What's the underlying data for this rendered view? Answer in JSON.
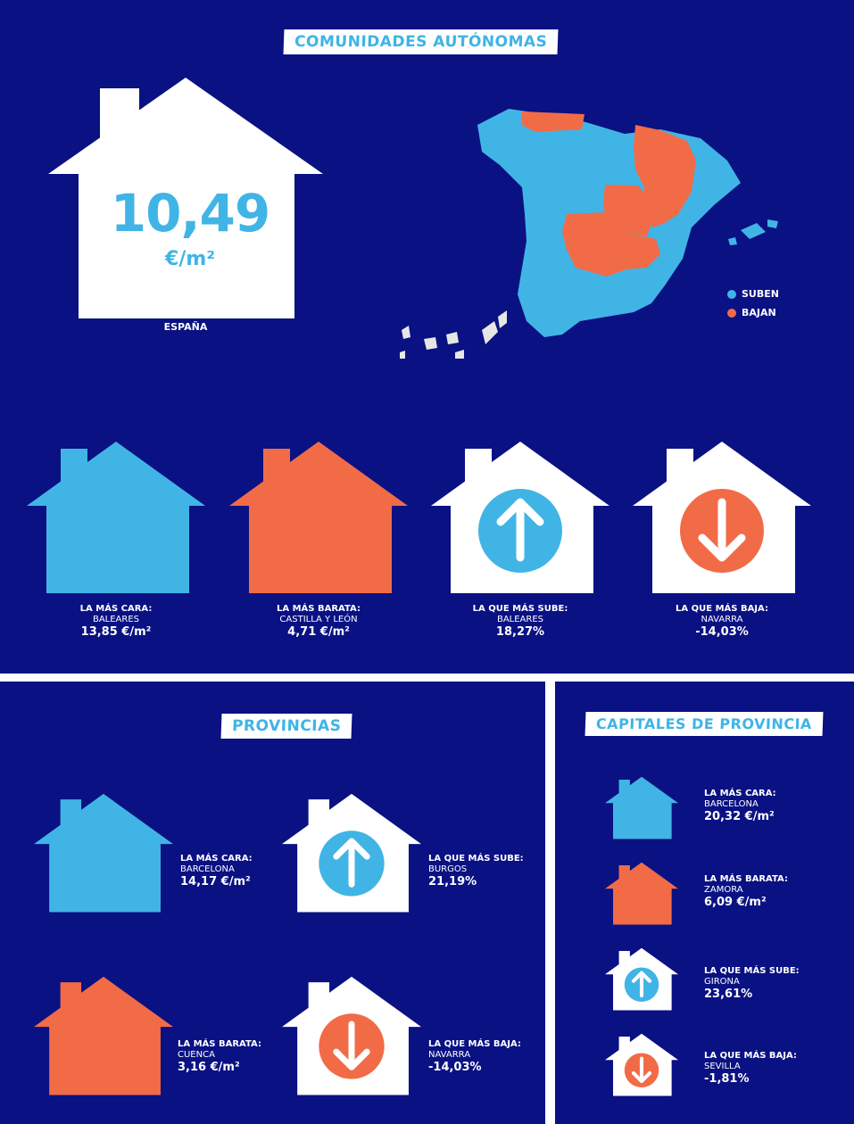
{
  "colors": {
    "navy": "#0a1183",
    "blue": "#41b4e6",
    "orange": "#f26b47",
    "white": "#ffffff"
  },
  "comunidades": {
    "title": "COMUNIDADES AUTÓNOMAS",
    "spain_value": "10,49",
    "spain_unit": "€/m²",
    "spain_label": "ESPAÑA",
    "legend": [
      {
        "label": "SUBEN",
        "color": "#41b4e6"
      },
      {
        "label": "BAJAN",
        "color": "#f26b47"
      }
    ],
    "cards": [
      {
        "title": "LA MÁS CARA:",
        "name": "BALEARES",
        "value": "13,85 €/m²",
        "icon": "house-blue-icon"
      },
      {
        "title": "LA MÁS BARATA:",
        "name": "CASTILLA Y LEÓN",
        "value": "4,71 €/m²",
        "icon": "house-orange-icon"
      },
      {
        "title": "LA QUE MÁS SUBE:",
        "name": "BALEARES",
        "value": "18,27%",
        "icon": "arrow-up-icon"
      },
      {
        "title": "LA QUE MÁS BAJA:",
        "name": "NAVARRA",
        "value": "-14,03%",
        "icon": "arrow-down-icon"
      }
    ]
  },
  "provincias": {
    "title": "PROVINCIAS",
    "cards": [
      {
        "title": "LA MÁS CARA:",
        "name": "BARCELONA",
        "value": "14,17 €/m²"
      },
      {
        "title": "LA QUE MÁS SUBE:",
        "name": "BURGOS",
        "value": "21,19%"
      },
      {
        "title": "LA MÁS BARATA:",
        "name": "CUENCA",
        "value": "3,16 €/m²"
      },
      {
        "title": "LA QUE MÁS BAJA:",
        "name": "NAVARRA",
        "value": "-14,03%"
      }
    ]
  },
  "capitales": {
    "title": "CAPITALES DE PROVINCIA",
    "cards": [
      {
        "title": "LA MÁS CARA:",
        "name": "BARCELONA",
        "value": "20,32 €/m²"
      },
      {
        "title": "LA MÁS BARATA:",
        "name": "ZAMORA",
        "value": "6,09 €/m²"
      },
      {
        "title": "LA QUE MÁS SUBE:",
        "name": "GIRONA",
        "value": "23,61%"
      },
      {
        "title": "LA QUE MÁS BAJA:",
        "name": "SEVILLA",
        "value": "-1,81%"
      }
    ]
  }
}
